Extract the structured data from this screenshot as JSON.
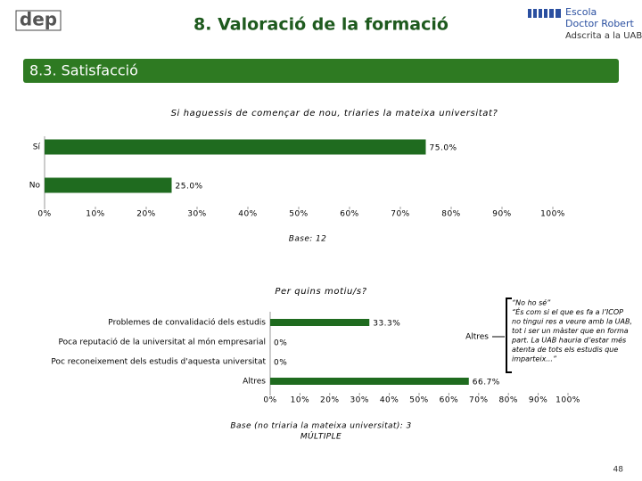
{
  "header": {
    "title": "8. Valoració de la formació",
    "logo_left": "dep",
    "logo_right": [
      "Escola",
      "Doctor Robert",
      "Adscrita a la UAB"
    ]
  },
  "section": "8.3. Satisfacció",
  "page_number": "48",
  "chart_data": [
    {
      "type": "hbar",
      "title": "Si haguessis de començar de nou, triaries la mateixa universitat?",
      "categories": [
        "Sí",
        "No"
      ],
      "values": [
        75.0,
        25.0
      ],
      "value_labels": [
        "75.0%",
        "25.0%"
      ],
      "color": "#1f6b1f",
      "xlim": [
        0,
        100
      ],
      "xticks": [
        {
          "value": 0,
          "label": "0%"
        },
        {
          "value": 10,
          "label": "10%"
        },
        {
          "value": 20,
          "label": "20%"
        },
        {
          "value": 30,
          "label": "30%"
        },
        {
          "value": 40,
          "label": "40%"
        },
        {
          "value": 50,
          "label": "50%"
        },
        {
          "value": 60,
          "label": "60%"
        },
        {
          "value": 70,
          "label": "70%"
        },
        {
          "value": 80,
          "label": "80%"
        },
        {
          "value": 90,
          "label": "90%"
        },
        {
          "value": 100,
          "label": "100%"
        }
      ],
      "footnote": [
        "Base: 12"
      ]
    },
    {
      "type": "hbar",
      "title": "Per quins motiu/s?",
      "categories": [
        "Problemes de convalidació dels estudis",
        "Poca reputació de la universitat al món empresarial",
        "Poc reconeixement dels estudis d'aquesta universitat",
        "Altres"
      ],
      "values": [
        33.3,
        0,
        0,
        66.7
      ],
      "value_labels": [
        "33.3%",
        "0%",
        "0%",
        "66.7%"
      ],
      "color": "#1f6b1f",
      "xlim": [
        0,
        100
      ],
      "xticks": [
        {
          "value": 0,
          "label": "0%"
        },
        {
          "value": 10,
          "label": "10%"
        },
        {
          "value": 20,
          "label": "20%"
        },
        {
          "value": 30,
          "label": "30%"
        },
        {
          "value": 40,
          "label": "40%"
        },
        {
          "value": 50,
          "label": "50%"
        },
        {
          "value": 60,
          "label": "60%"
        },
        {
          "value": 70,
          "label": "70%"
        },
        {
          "value": 80,
          "label": "80%"
        },
        {
          "value": 90,
          "label": "90%"
        },
        {
          "value": 100,
          "label": "100%"
        }
      ],
      "footnote": [
        "Base (no triaria la mateixa universitat): 3",
        "MÚLTIPLE"
      ],
      "annotation": {
        "label": "Altres",
        "text": [
          "“No ho sé”",
          "“És com si el que es fa a l’ICOP",
          "no tingui res a veure amb la UAB,",
          "tot i ser un màster que en forma",
          "part. La UAB hauria d’estar més",
          "atenta de tots els estudis que",
          "imparteix...”"
        ]
      }
    }
  ]
}
